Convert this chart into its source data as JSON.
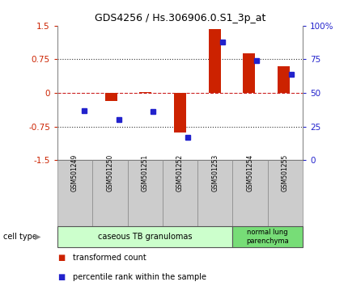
{
  "title": "GDS4256 / Hs.306906.0.S1_3p_at",
  "samples": [
    "GSM501249",
    "GSM501250",
    "GSM501251",
    "GSM501252",
    "GSM501253",
    "GSM501254",
    "GSM501255"
  ],
  "transformed_count": [
    0.0,
    -0.18,
    0.02,
    -0.88,
    1.42,
    0.88,
    0.6
  ],
  "percentile_rank": [
    37,
    30,
    36,
    17,
    88,
    74,
    64
  ],
  "ylim_left": [
    -1.5,
    1.5
  ],
  "ylim_right": [
    0,
    100
  ],
  "yticks_left": [
    -1.5,
    -0.75,
    0,
    0.75,
    1.5
  ],
  "yticks_right": [
    0,
    25,
    50,
    75,
    100
  ],
  "ytick_labels_right": [
    "0",
    "25",
    "50",
    "75",
    "100%"
  ],
  "bar_color": "#cc2200",
  "dot_color": "#2222cc",
  "zero_line_color": "#cc2222",
  "grid_line_color": "#333333",
  "cell_type_group1_label": "caseous TB granulomas",
  "cell_type_group2_label": "normal lung\nparenchyma",
  "cell_type_group1_samples": [
    0,
    1,
    2,
    3,
    4
  ],
  "cell_type_group2_samples": [
    5,
    6
  ],
  "group1_color": "#ccffcc",
  "group2_color": "#77dd77",
  "sample_label_bg": "#cccccc",
  "legend_bar_label": "transformed count",
  "legend_dot_label": "percentile rank within the sample",
  "cell_type_label": "cell type"
}
